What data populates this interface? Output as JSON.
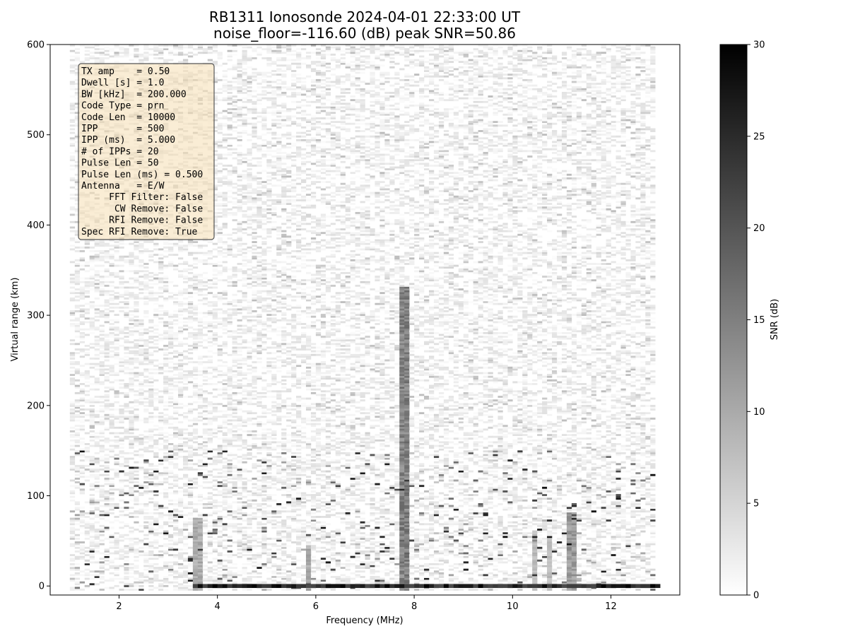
{
  "chart_data": {
    "type": "heatmap",
    "title": "RB1311 Ionosonde 2024-04-01 22:33:00  UT",
    "subtitle": "noise_floor=-116.60 (dB) peak SNR=50.86",
    "xlabel": "Frequency (MHz)",
    "ylabel": "Virtual range (km)",
    "xlim": [
      0.6,
      13.4
    ],
    "ylim": [
      -10,
      600
    ],
    "xticks": [
      2,
      4,
      6,
      8,
      10,
      12
    ],
    "yticks": [
      0,
      100,
      200,
      300,
      400,
      500,
      600
    ],
    "colorbar": {
      "label": "SNR (dB)",
      "range": [
        0,
        30
      ],
      "ticks": [
        0,
        5,
        10,
        15,
        20,
        25,
        30
      ],
      "colormap": "gray_r"
    },
    "data_extent": {
      "freq_start": 1.0,
      "freq_end": 12.9,
      "range_start": -5,
      "range_end": 600
    },
    "strong_features": [
      {
        "freq": 7.8,
        "range_top": 330,
        "snr": 15
      },
      {
        "freq": 3.6,
        "range_top": 75,
        "snr": 10
      },
      {
        "freq": 5.85,
        "range_top": 45,
        "snr": 10
      },
      {
        "freq": 10.45,
        "range_top": 60,
        "snr": 8
      },
      {
        "freq": 10.75,
        "range_top": 55,
        "snr": 8
      },
      {
        "freq": 11.2,
        "range_top": 80,
        "snr": 12
      }
    ],
    "ground_echo": {
      "range": 0,
      "freq_start": 3.5,
      "freq_end": 12.9,
      "snr": 30
    },
    "info_box": [
      "TX amp    = 0.50",
      "Dwell [s] = 1.0",
      "BW [kHz]  = 200.000",
      "Code Type = prn",
      "Code Len  = 10000",
      "IPP       = 500",
      "IPP (ms)  = 5.000",
      "# of IPPs = 20",
      "Pulse Len = 50",
      "Pulse Len (ms) = 0.500",
      "Antenna   = E/W",
      "     FFT Filter: False",
      "      CW Remove: False",
      "     RFI Remove: False",
      "Spec RFI Remove: True"
    ],
    "colors": {
      "info_box_fill": "#f5deb3",
      "info_box_edge": "#555555"
    }
  }
}
